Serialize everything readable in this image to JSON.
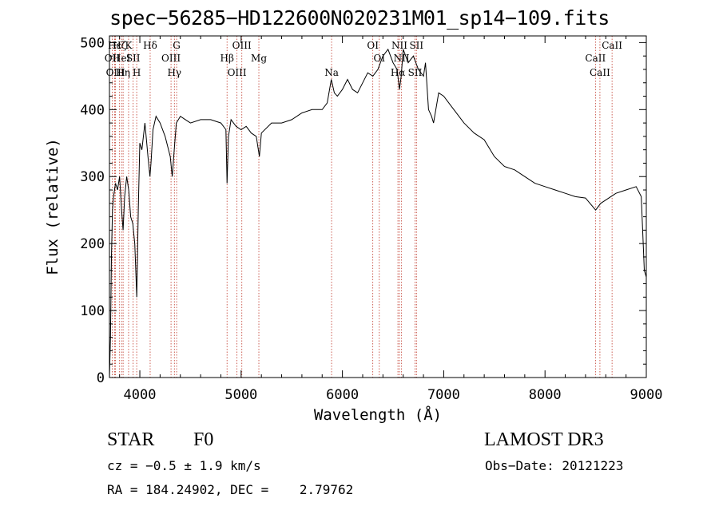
{
  "chart_data": {
    "type": "line",
    "title": "spec−56285−HD122600N020231M01_sp14−109.fits",
    "xlabel": "Wavelength (Å)",
    "ylabel": "Flux (relative)",
    "xlim": [
      3700,
      9000
    ],
    "ylim": [
      0,
      510
    ],
    "xticks": [
      4000,
      5000,
      6000,
      7000,
      8000,
      9000
    ],
    "yticks": [
      0,
      100,
      200,
      300,
      400,
      500
    ],
    "series": [
      {
        "name": "flux",
        "x": [
          3700,
          3710,
          3720,
          3730,
          3740,
          3760,
          3780,
          3800,
          3820,
          3835,
          3850,
          3870,
          3890,
          3910,
          3930,
          3950,
          3970,
          3985,
          4000,
          4020,
          4050,
          4080,
          4100,
          4110,
          4130,
          4160,
          4200,
          4250,
          4300,
          4320,
          4340,
          4360,
          4400,
          4450,
          4500,
          4600,
          4700,
          4800,
          4850,
          4861,
          4875,
          4900,
          4950,
          5000,
          5050,
          5100,
          5150,
          5170,
          5180,
          5200,
          5300,
          5400,
          5500,
          5600,
          5700,
          5800,
          5850,
          5890,
          5920,
          5950,
          6000,
          6050,
          6100,
          6150,
          6200,
          6250,
          6300,
          6350,
          6400,
          6450,
          6500,
          6540,
          6563,
          6580,
          6600,
          6650,
          6700,
          6750,
          6800,
          6820,
          6850,
          6880,
          6900,
          6950,
          7000,
          7100,
          7200,
          7300,
          7400,
          7500,
          7600,
          7700,
          7800,
          7900,
          8000,
          8100,
          8200,
          8300,
          8400,
          8500,
          8550,
          8600,
          8700,
          8800,
          8900,
          8950,
          8980,
          9000
        ],
        "y": [
          0,
          60,
          180,
          250,
          270,
          290,
          280,
          300,
          250,
          220,
          270,
          300,
          280,
          240,
          230,
          200,
          120,
          250,
          350,
          340,
          380,
          330,
          300,
          320,
          370,
          390,
          380,
          360,
          330,
          300,
          340,
          380,
          390,
          385,
          380,
          385,
          385,
          380,
          370,
          290,
          360,
          385,
          375,
          370,
          375,
          365,
          360,
          340,
          330,
          365,
          380,
          380,
          385,
          395,
          400,
          400,
          410,
          445,
          425,
          420,
          430,
          445,
          430,
          425,
          440,
          455,
          450,
          460,
          480,
          490,
          470,
          460,
          430,
          450,
          490,
          470,
          480,
          460,
          450,
          470,
          400,
          390,
          380,
          425,
          420,
          400,
          380,
          365,
          355,
          330,
          315,
          310,
          300,
          290,
          285,
          280,
          275,
          270,
          268,
          250,
          260,
          265,
          275,
          280,
          285,
          270,
          160,
          150
        ]
      }
    ],
    "lines": [
      {
        "label": "Hε",
        "wl": 3751
      },
      {
        "label": "OII",
        "wl": 3727
      },
      {
        "label": "OIII",
        "wl": 3760
      },
      {
        "label": "Hζ",
        "wl": 3800
      },
      {
        "label": "HeI",
        "wl": 3820
      },
      {
        "label": "Hη",
        "wl": 3835
      },
      {
        "label": "K",
        "wl": 3889
      },
      {
        "label": "SII",
        "wl": 3934
      },
      {
        "label": "H",
        "wl": 3969
      },
      {
        "label": "Hδ",
        "wl": 4102
      },
      {
        "label": "OIII",
        "wl": 4308
      },
      {
        "label": "Hγ",
        "wl": 4341
      },
      {
        "label": "G",
        "wl": 4363
      },
      {
        "label": "Hβ",
        "wl": 4861
      },
      {
        "label": "OIII",
        "wl": 4959
      },
      {
        "label": "OIII",
        "wl": 5007
      },
      {
        "label": "Mg",
        "wl": 5175
      },
      {
        "label": "Na",
        "wl": 5893
      },
      {
        "label": "OI",
        "wl": 6300
      },
      {
        "label": "OI",
        "wl": 6364
      },
      {
        "label": "Hα",
        "wl": 6548
      },
      {
        "label": "NII",
        "wl": 6563
      },
      {
        "label": "NII",
        "wl": 6584
      },
      {
        "label": "SII",
        "wl": 6717
      },
      {
        "label": "SII",
        "wl": 6731
      },
      {
        "label": "CaII",
        "wl": 8498
      },
      {
        "label": "CaII",
        "wl": 8542
      },
      {
        "label": "CaII",
        "wl": 8662
      }
    ]
  },
  "info": {
    "class": "STAR",
    "subclass": "F0",
    "survey": "LAMOST DR3",
    "cz": "cz = −0.5 ± 1.9 km/s",
    "obs_date": "Obs−Date: 20121223",
    "radec": "RA = 184.24902, DEC =    2.79762"
  }
}
